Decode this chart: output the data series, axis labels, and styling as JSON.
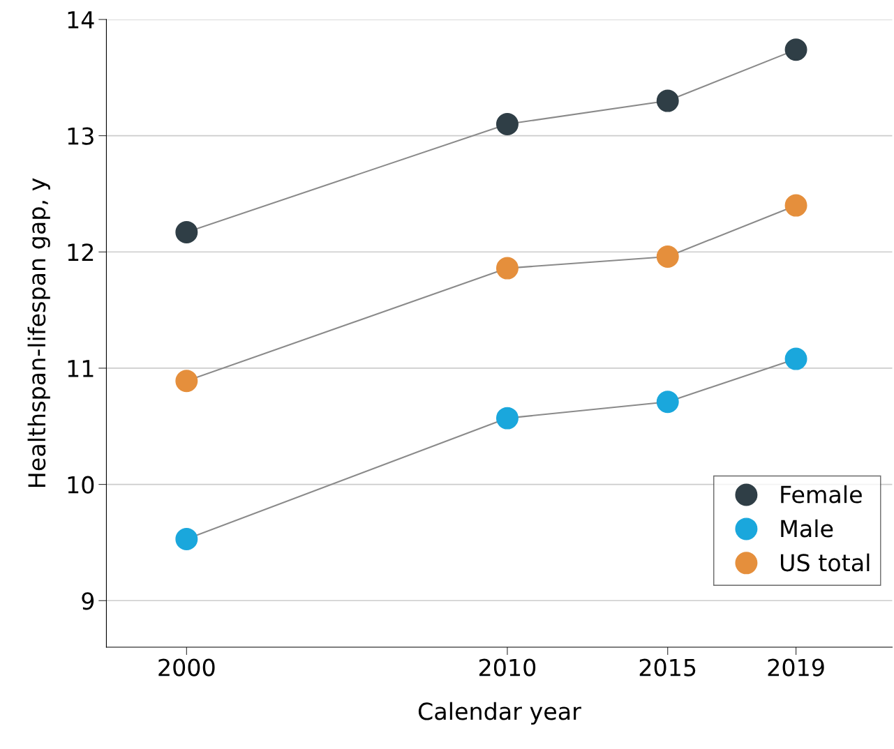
{
  "chart_data": {
    "type": "line",
    "xlabel": "Calendar year",
    "ylabel": "Healthspan-lifespan gap, y",
    "x": [
      2000,
      2010,
      2015,
      2019
    ],
    "series": [
      {
        "name": "Female",
        "color": "#2f3e46",
        "values": [
          12.17,
          13.1,
          13.3,
          13.74
        ]
      },
      {
        "name": "Male",
        "color": "#1aa7dc",
        "values": [
          9.53,
          10.57,
          10.71,
          11.08
        ]
      },
      {
        "name": "US total",
        "color": "#e58f3c",
        "values": [
          10.89,
          11.86,
          11.96,
          12.4
        ]
      }
    ],
    "xlim": [
      1997.5,
      2022
    ],
    "xticks": [
      2000,
      2010,
      2015,
      2019
    ],
    "ylim": [
      8.6,
      14
    ],
    "yticks": [
      9,
      10,
      11,
      12,
      13,
      14
    ],
    "grid": "y",
    "legend": "bottom right",
    "marker": "circle",
    "line_style": "solid"
  }
}
